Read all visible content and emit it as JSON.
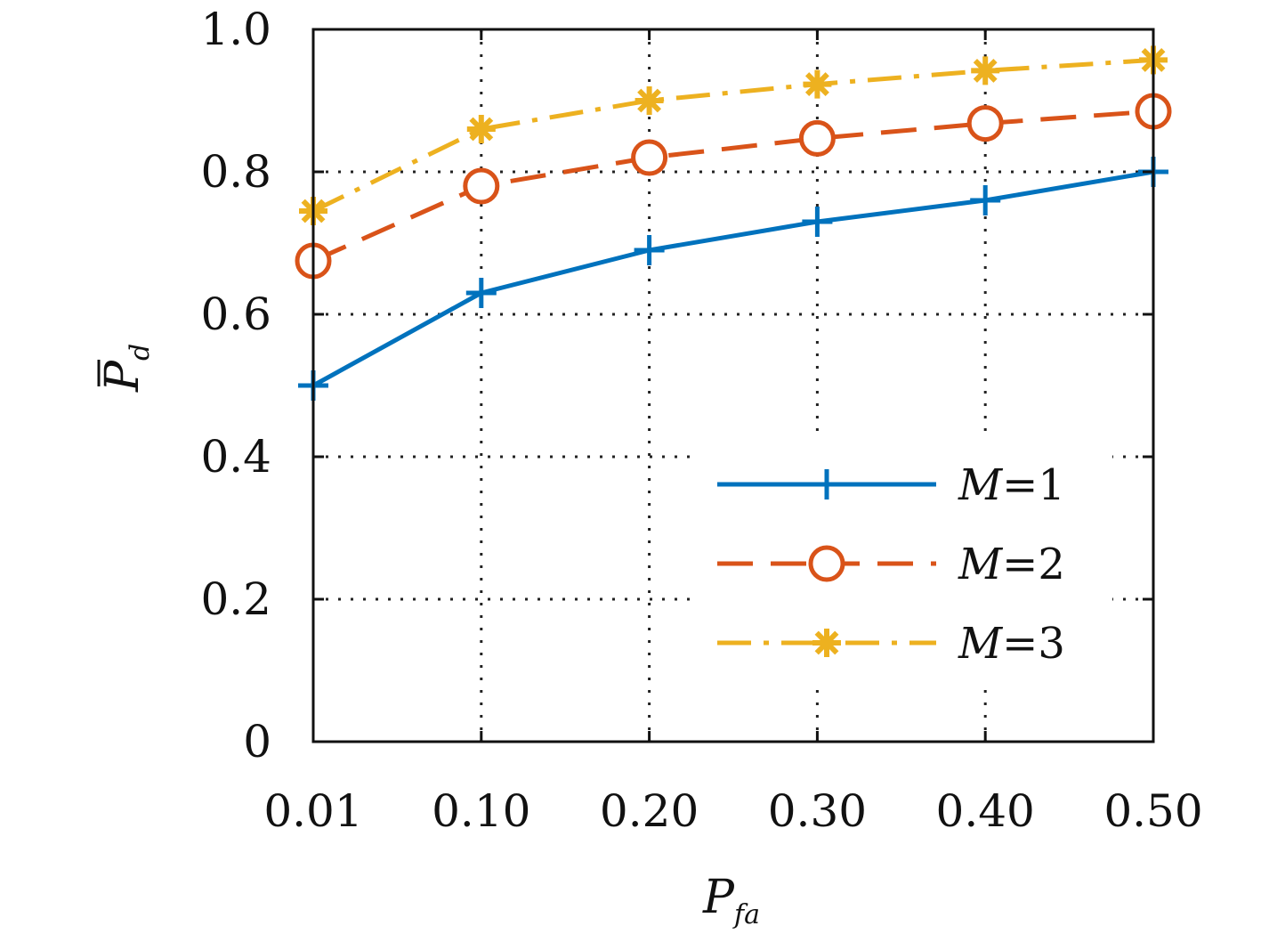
{
  "chart_data": {
    "type": "line",
    "x": [
      "0.01",
      "0.10",
      "0.20",
      "0.30",
      "0.40",
      "0.50"
    ],
    "xlabel": {
      "symbol": "P",
      "subscript": "fa"
    },
    "ylabel": {
      "symbol": "P",
      "subscript": "d",
      "overbar": true
    },
    "ylim": [
      0,
      1.0
    ],
    "yticks": [
      "0",
      "0.2",
      "0.4",
      "0.6",
      "0.8",
      "1.0"
    ],
    "grid": true,
    "legend_position": "bottom-right",
    "series": [
      {
        "name": "M=1",
        "label_var": "M",
        "label_eq": "=1",
        "color": "#0072BD",
        "marker": "plus",
        "line": "solid",
        "values": [
          0.5,
          0.63,
          0.69,
          0.73,
          0.76,
          0.8
        ]
      },
      {
        "name": "M=2",
        "label_var": "M",
        "label_eq": "=2",
        "color": "#D95319",
        "marker": "circle",
        "line": "dashed",
        "values": [
          0.675,
          0.78,
          0.82,
          0.847,
          0.868,
          0.885
        ]
      },
      {
        "name": "M=3",
        "label_var": "M",
        "label_eq": "=3",
        "color": "#EDB120",
        "marker": "asterisk",
        "line": "dashdot",
        "values": [
          0.745,
          0.86,
          0.9,
          0.923,
          0.942,
          0.957
        ]
      }
    ]
  }
}
